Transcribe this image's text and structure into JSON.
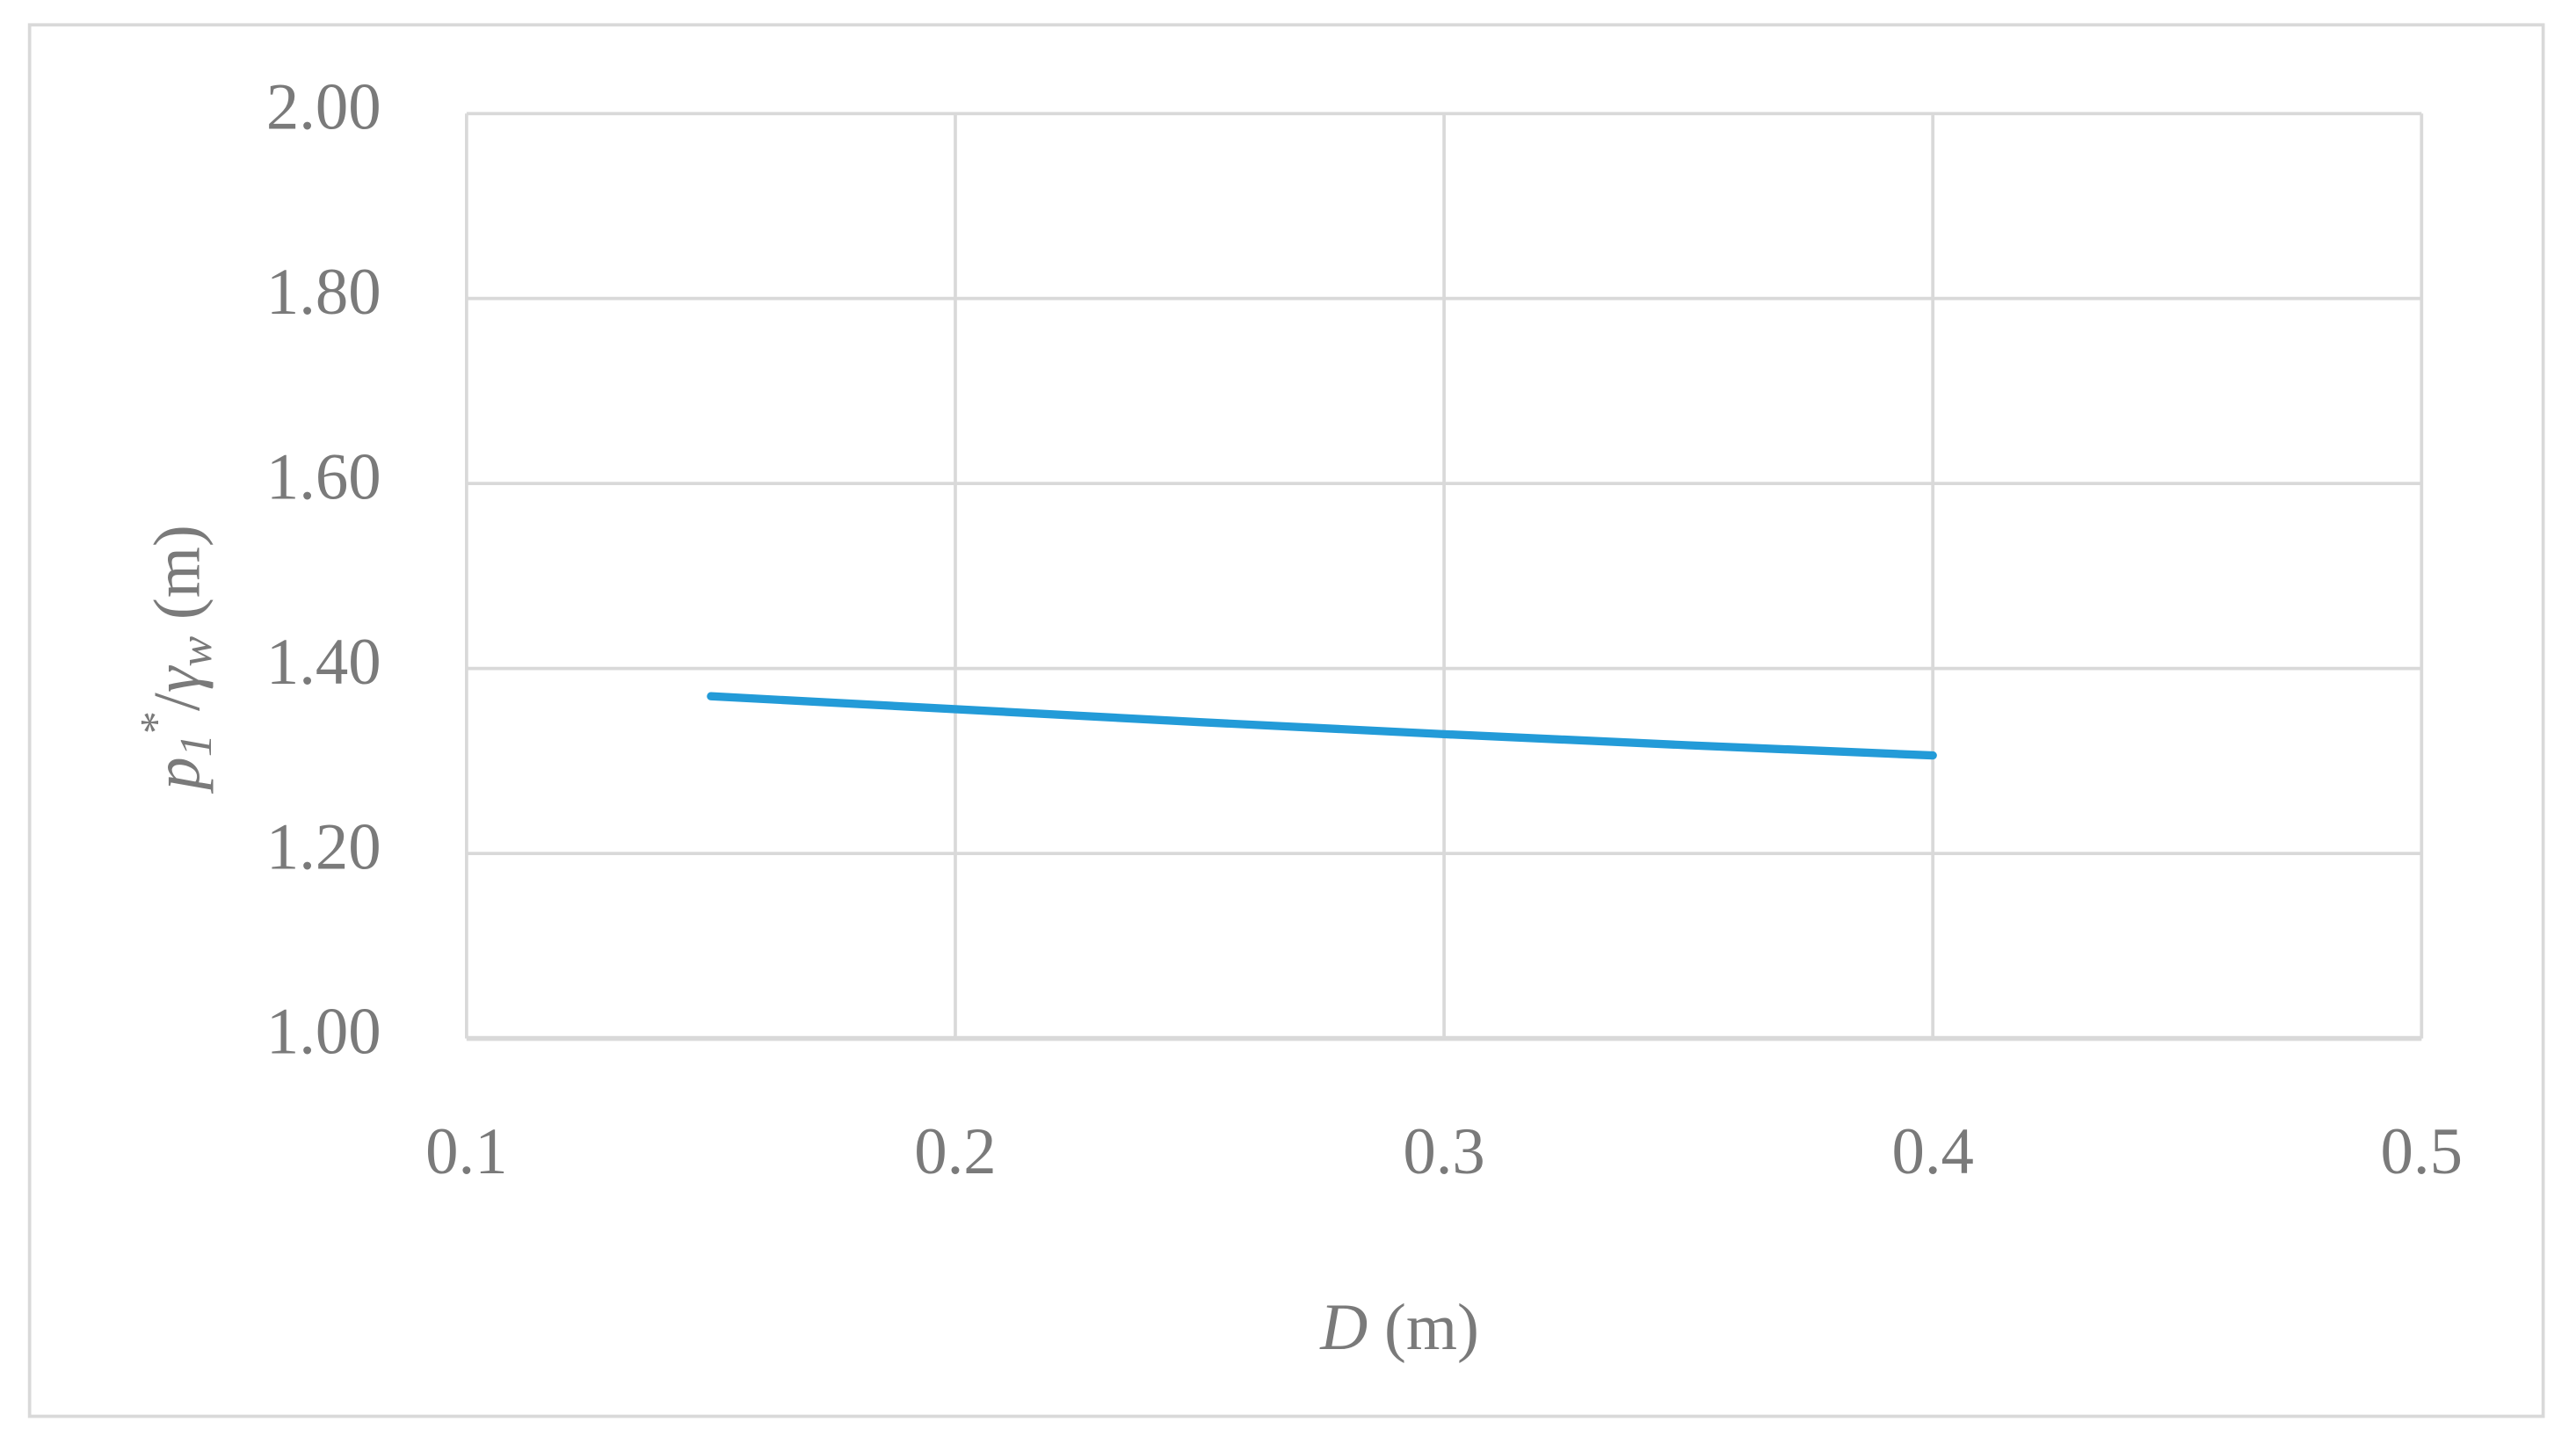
{
  "chart_data": {
    "type": "line",
    "x_label_parts": [
      "D",
      " (m)"
    ],
    "y_label_parts": [
      "p",
      "1",
      "*",
      "/",
      "γ",
      "w",
      " (m)"
    ],
    "x": [
      0.15,
      0.2,
      0.25,
      0.3,
      0.35,
      0.4
    ],
    "series": [
      {
        "color": "#239bd8",
        "values": [
          1.37,
          1.356,
          1.342,
          1.329,
          1.317,
          1.306
        ]
      }
    ],
    "xlim": [
      0.1,
      0.5
    ],
    "xticks": [
      0.1,
      0.2,
      0.3,
      0.4,
      0.5
    ],
    "ylim": [
      1.0,
      2.0
    ],
    "yticks": [
      {
        "value": 1.0,
        "label": "1.00"
      },
      {
        "value": 1.2,
        "label": "1.20"
      },
      {
        "value": 1.4,
        "label": "1.40"
      },
      {
        "value": 1.6,
        "label": "1.60"
      },
      {
        "value": 1.8,
        "label": "1.80"
      },
      {
        "value": 2.0,
        "label": "2.00"
      }
    ],
    "grid": true
  }
}
